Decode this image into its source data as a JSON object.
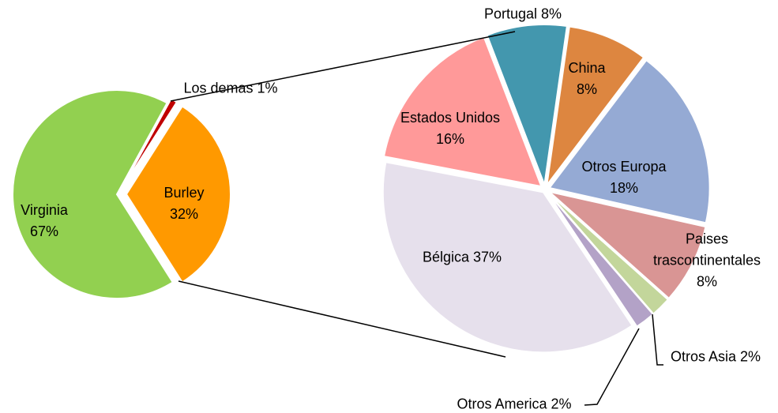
{
  "chart_data": [
    {
      "type": "pie",
      "categories": [
        "Burley",
        "Virginia",
        "Los demas"
      ],
      "values": [
        32,
        67,
        1
      ],
      "value_labels": [
        "32%",
        "67%",
        "1%"
      ],
      "colors": [
        "#ff9900",
        "#92d050",
        "#c00000"
      ]
    },
    {
      "type": "pie",
      "categories": [
        "Portugal",
        "China",
        "Otros Europa",
        "Paises trascontinentales",
        "Otros Asia",
        "Otros America",
        "Bélgica",
        "Estados Unidos"
      ],
      "values": [
        8,
        8,
        18,
        8,
        2,
        2,
        37,
        16
      ],
      "value_labels": [
        "8%",
        "8%",
        "18%",
        "8%",
        "2%",
        "2%",
        "37%",
        "16%"
      ],
      "colors": [
        "#4397ae",
        "#dd8640",
        "#95aad4",
        "#d99594",
        "#c3d69b",
        "#b3a2c7",
        "#e6e0ec",
        "#ff9999"
      ]
    }
  ]
}
